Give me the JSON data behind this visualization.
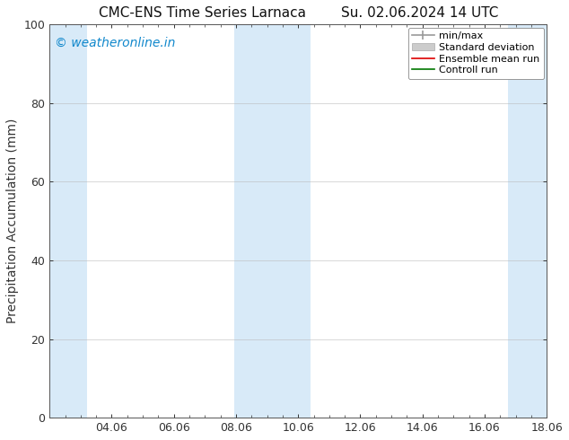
{
  "title": "CMC-ENS Time Series Larnaca",
  "title2": "Su. 02.06.2024 14 UTC",
  "ylabel": "Precipitation Accumulation (mm)",
  "ylim": [
    0,
    100
  ],
  "yticks": [
    0,
    20,
    40,
    60,
    80,
    100
  ],
  "xtick_labels": [
    "04.06",
    "06.06",
    "08.06",
    "10.06",
    "12.06",
    "14.06",
    "16.06",
    "18.06"
  ],
  "xtick_positions": [
    2,
    4,
    6,
    8,
    10,
    12,
    14,
    16
  ],
  "xlim": [
    0,
    16
  ],
  "watermark": "© weatheronline.in",
  "watermark_color": "#1188cc",
  "background_color": "#ffffff",
  "plot_bg_color": "#ffffff",
  "shaded_regions": [
    {
      "x_start": -0.05,
      "x_end": 1.2,
      "color": "#d8eaf8"
    },
    {
      "x_start": 5.95,
      "x_end": 8.4,
      "color": "#d8eaf8"
    },
    {
      "x_start": 14.75,
      "x_end": 16.05,
      "color": "#d8eaf8"
    }
  ],
  "font_size_title": 11,
  "font_size_tick": 9,
  "font_size_legend": 8,
  "font_size_ylabel": 10,
  "font_size_watermark": 10,
  "spine_color": "#555555",
  "tick_color": "#333333"
}
